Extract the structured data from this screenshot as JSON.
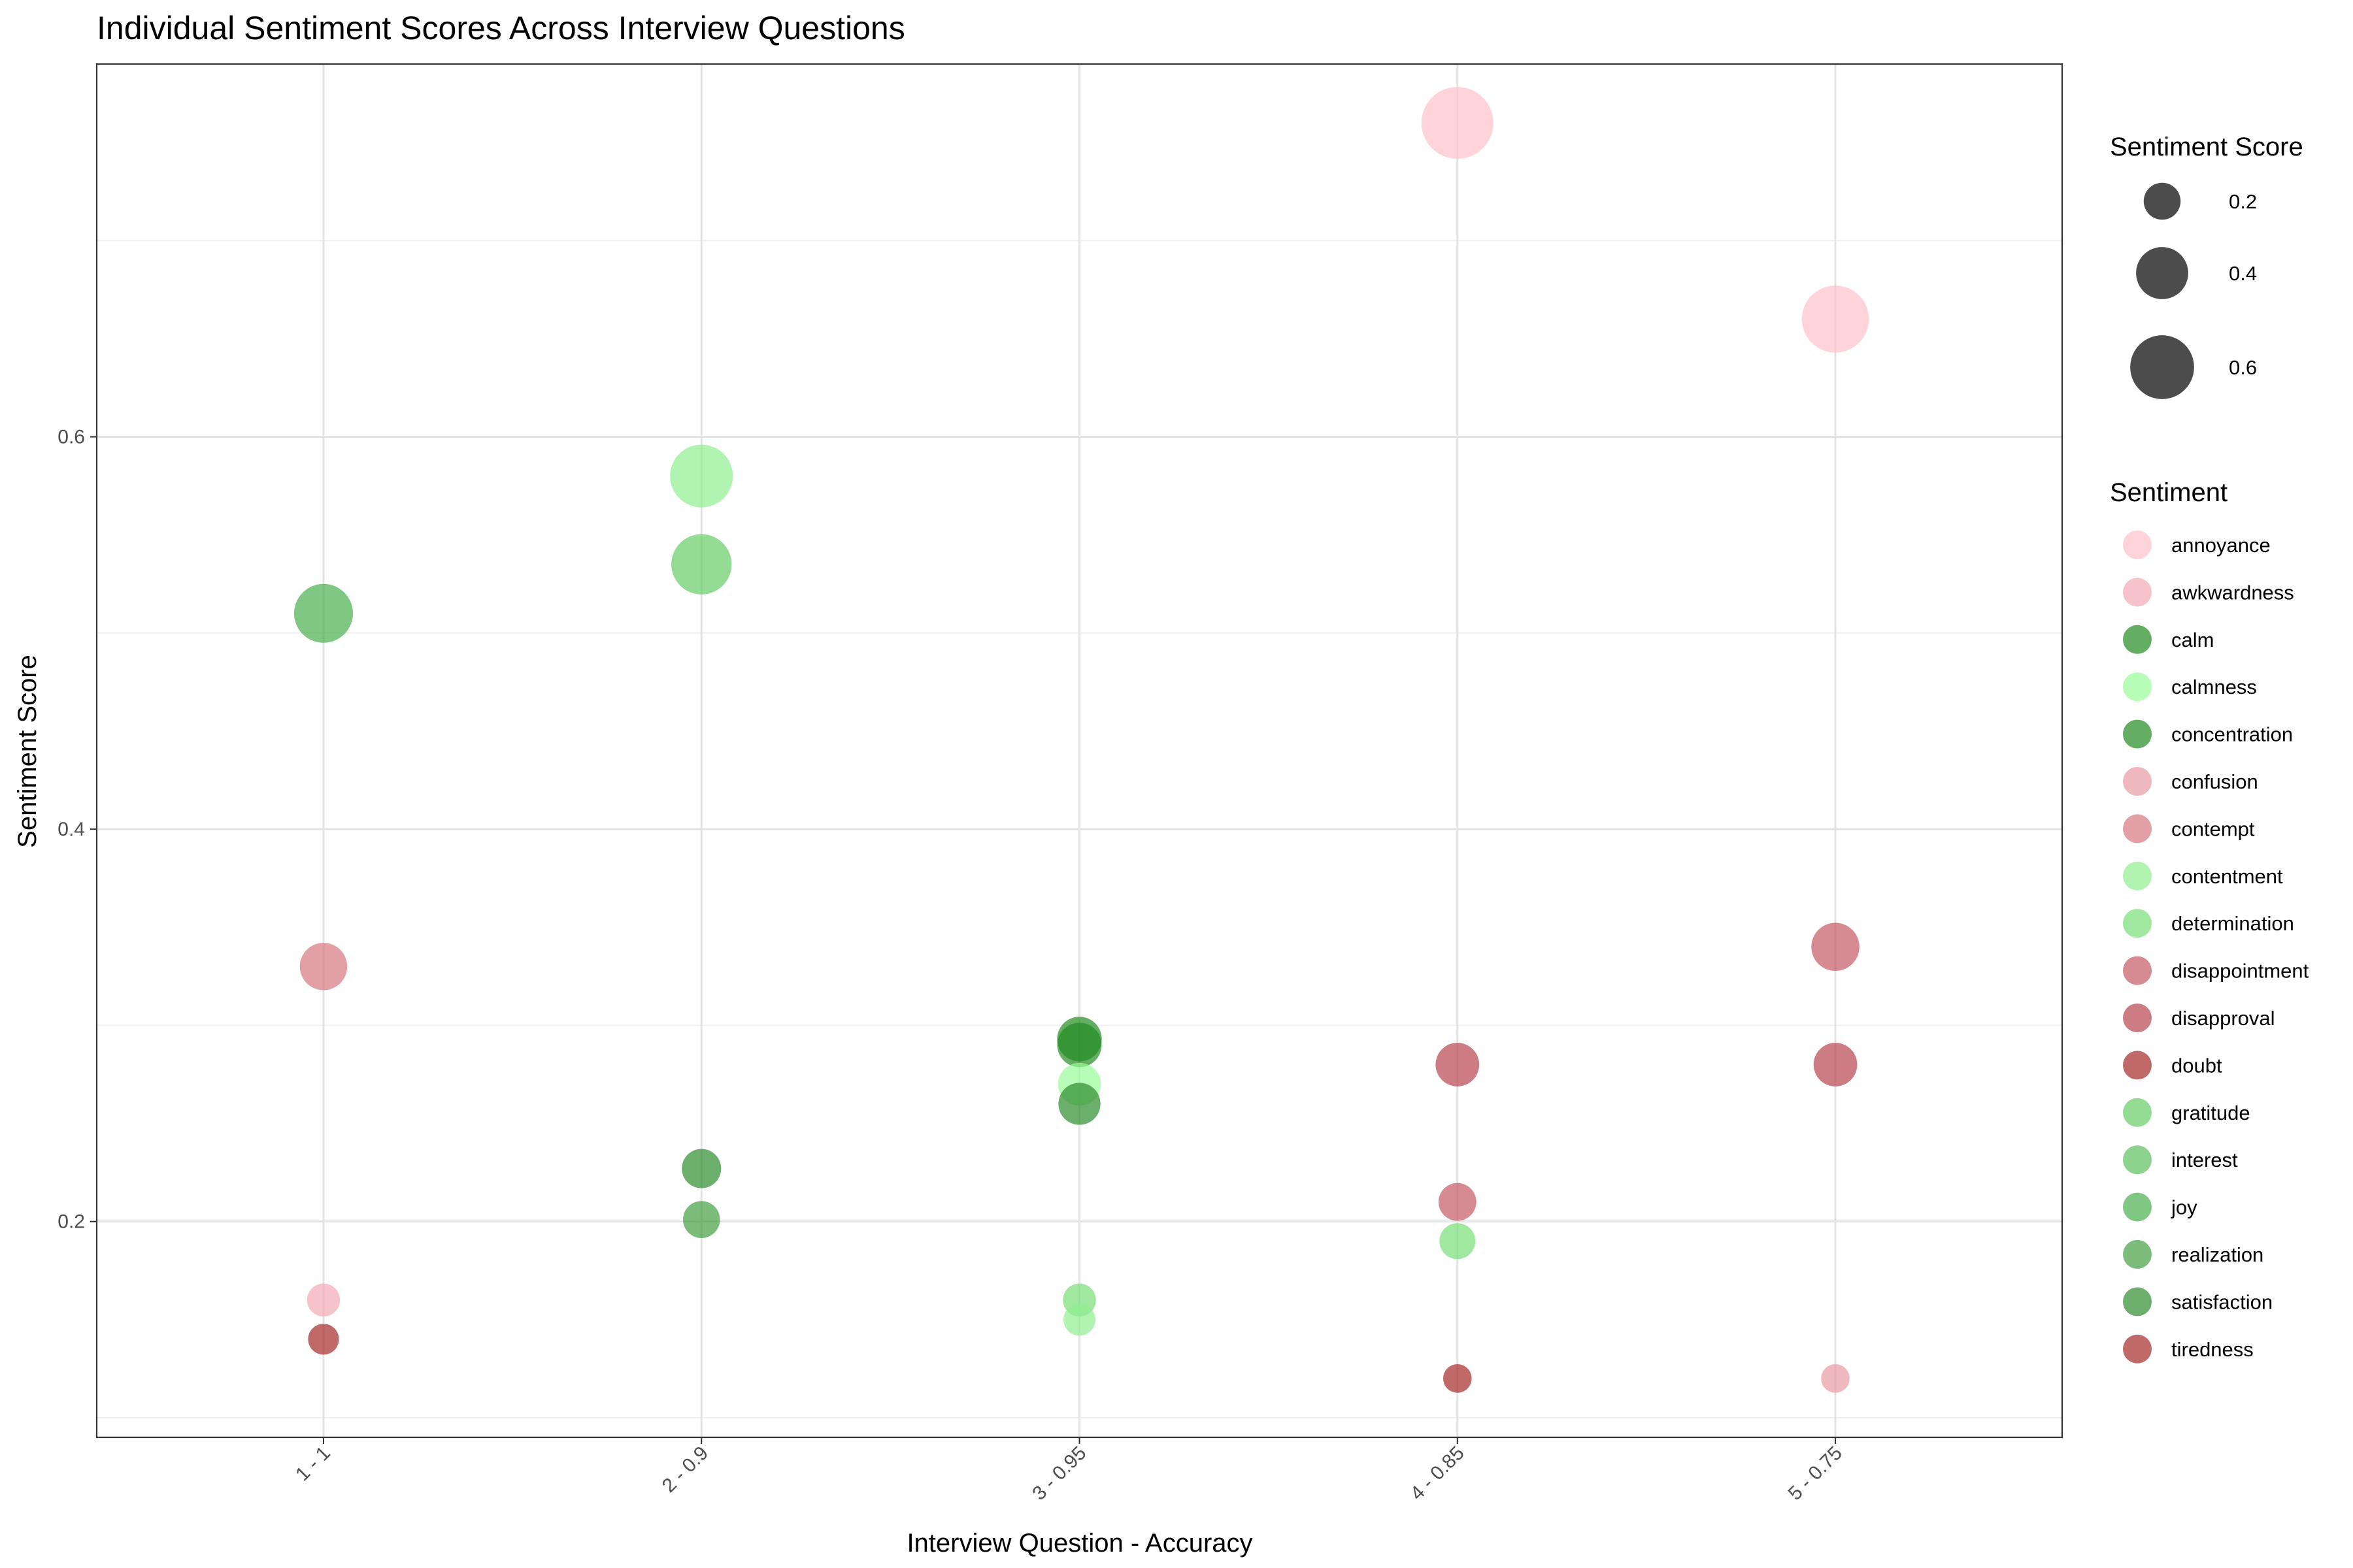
{
  "chart_data": {
    "type": "scatter",
    "title": "Individual Sentiment Scores Across Interview Questions",
    "xlabel": "Interview Question - Accuracy",
    "ylabel": "Sentiment Score",
    "categories": [
      "1 - 1",
      "2 - 0.9",
      "3 - 0.95",
      "4 - 0.85",
      "5 - 0.75"
    ],
    "y_ticks": [
      0.2,
      0.4,
      0.6
    ],
    "ylim": [
      0.09,
      0.79
    ],
    "grid": true,
    "size_legend": {
      "title": "Sentiment Score",
      "values": [
        0.2,
        0.4,
        0.6
      ],
      "labels": [
        "0.2",
        "0.4",
        "0.6"
      ]
    },
    "color_legend": {
      "title": "Sentiment",
      "placement": "right",
      "entries": [
        {
          "name": "annoyance",
          "color": "#FFC0CB"
        },
        {
          "name": "awkwardness",
          "color": "#F4A9B4"
        },
        {
          "name": "calm",
          "color": "#228B22"
        },
        {
          "name": "calmness",
          "color": "#98FB98"
        },
        {
          "name": "concentration",
          "color": "#228B22"
        },
        {
          "name": "confusion",
          "color": "#E89AA2"
        },
        {
          "name": "contempt",
          "color": "#D67880"
        },
        {
          "name": "contentment",
          "color": "#90EE90"
        },
        {
          "name": "determination",
          "color": "#77DD77"
        },
        {
          "name": "disappointment",
          "color": "#C45A64"
        },
        {
          "name": "disapproval",
          "color": "#B84450"
        },
        {
          "name": "doubt",
          "color": "#A52A2A"
        },
        {
          "name": "gratitude",
          "color": "#66CC66"
        },
        {
          "name": "interest",
          "color": "#5CBF5C"
        },
        {
          "name": "joy",
          "color": "#4CAF50"
        },
        {
          "name": "realization",
          "color": "#43A043"
        },
        {
          "name": "satisfaction",
          "color": "#2E8B2E"
        },
        {
          "name": "tiredness",
          "color": "#A52A2A"
        }
      ]
    },
    "points": [
      {
        "x": "1 - 1",
        "y": 0.51,
        "sentiment": "joy"
      },
      {
        "x": "1 - 1",
        "y": 0.33,
        "sentiment": "contempt"
      },
      {
        "x": "1 - 1",
        "y": 0.16,
        "sentiment": "awkwardness"
      },
      {
        "x": "1 - 1",
        "y": 0.14,
        "sentiment": "tiredness"
      },
      {
        "x": "2 - 0.9",
        "y": 0.58,
        "sentiment": "contentment"
      },
      {
        "x": "2 - 0.9",
        "y": 0.535,
        "sentiment": "gratitude"
      },
      {
        "x": "2 - 0.9",
        "y": 0.227,
        "sentiment": "satisfaction"
      },
      {
        "x": "2 - 0.9",
        "y": 0.201,
        "sentiment": "realization"
      },
      {
        "x": "3 - 0.95",
        "y": 0.293,
        "sentiment": "calm"
      },
      {
        "x": "3 - 0.95",
        "y": 0.29,
        "sentiment": "concentration"
      },
      {
        "x": "3 - 0.95",
        "y": 0.27,
        "sentiment": "calmness"
      },
      {
        "x": "3 - 0.95",
        "y": 0.26,
        "sentiment": "satisfaction"
      },
      {
        "x": "3 - 0.95",
        "y": 0.16,
        "sentiment": "determination"
      },
      {
        "x": "3 - 0.95",
        "y": 0.15,
        "sentiment": "contentment"
      },
      {
        "x": "4 - 0.85",
        "y": 0.76,
        "sentiment": "annoyance"
      },
      {
        "x": "4 - 0.85",
        "y": 0.28,
        "sentiment": "disapproval"
      },
      {
        "x": "4 - 0.85",
        "y": 0.21,
        "sentiment": "disappointment"
      },
      {
        "x": "4 - 0.85",
        "y": 0.19,
        "sentiment": "determination"
      },
      {
        "x": "4 - 0.85",
        "y": 0.12,
        "sentiment": "doubt"
      },
      {
        "x": "5 - 0.75",
        "y": 0.66,
        "sentiment": "annoyance"
      },
      {
        "x": "5 - 0.75",
        "y": 0.34,
        "sentiment": "disappointment"
      },
      {
        "x": "5 - 0.75",
        "y": 0.28,
        "sentiment": "disapproval"
      },
      {
        "x": "5 - 0.75",
        "y": 0.12,
        "sentiment": "confusion"
      }
    ]
  }
}
